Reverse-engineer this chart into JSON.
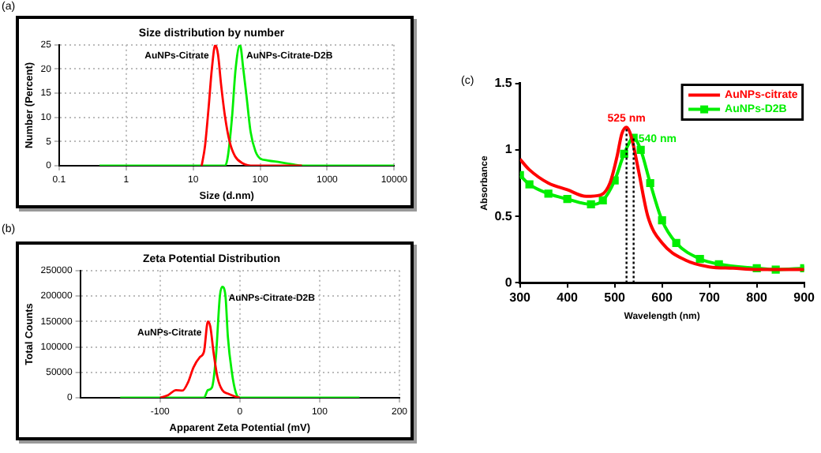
{
  "chart_data": [
    {
      "type": "line",
      "title": "Size distribution by number",
      "xlabel": "Size (d.nm)",
      "ylabel": "Number (Percent)",
      "annotations": [
        "(a)"
      ],
      "log": "x",
      "grid": true,
      "legend": false,
      "line_style": "solid",
      "marker": "none",
      "xlim": [
        0.1,
        10000
      ],
      "xticks": [
        0.1,
        1,
        10,
        100,
        1000,
        10000
      ],
      "ylim": [
        0,
        25
      ],
      "yticks": [
        0,
        5,
        10,
        15,
        20,
        25
      ],
      "series": [
        {
          "name": "AuNPs-Citrate",
          "color": "#ff0000",
          "x": [
            13.4,
            15,
            17,
            19,
            21.4,
            23.5,
            26,
            30,
            35,
            42,
            55,
            80,
            420
          ],
          "values": [
            0,
            4,
            12,
            20,
            25,
            23,
            17,
            10,
            5,
            2,
            0.5,
            0,
            0
          ]
        },
        {
          "name": "AuNPs-Citrate-D2B",
          "color": "#00ee00",
          "x": [
            0.4,
            30,
            33,
            38,
            43,
            50,
            56,
            63,
            72,
            85,
            100,
            130,
            200,
            300,
            420,
            10000
          ],
          "values": [
            0,
            0,
            2,
            10,
            20,
            25,
            20,
            14,
            7,
            3,
            1.5,
            1.1,
            0.7,
            0.3,
            0,
            0
          ]
        }
      ]
    },
    {
      "type": "line",
      "title": "Zeta Potential Distribution",
      "xlabel": "Apparent Zeta Potential (mV)",
      "ylabel": "Total Counts",
      "annotations": [
        "(b)"
      ],
      "grid": true,
      "legend": false,
      "line_style": "solid",
      "marker": "none",
      "xlim": [
        -200,
        200
      ],
      "xticks": [
        -100,
        0,
        100,
        200
      ],
      "ylim": [
        0,
        250000
      ],
      "yticks": [
        0,
        50000,
        100000,
        150000,
        200000,
        250000
      ],
      "series": [
        {
          "name": "AuNPs-Citrate",
          "color": "#ff0000",
          "x": [
            -100,
            -90,
            -80,
            -72,
            -65,
            -58,
            -50,
            -45,
            -40,
            -37,
            -33,
            -28,
            -22,
            -15,
            -5,
            0
          ],
          "values": [
            0,
            5000,
            15000,
            14000,
            30000,
            60000,
            80000,
            90000,
            150000,
            140000,
            90000,
            40000,
            15000,
            8000,
            2000,
            0
          ]
        },
        {
          "name": "AuNPs-Citrate-D2B",
          "color": "#00ee00",
          "x": [
            -150,
            -45,
            -40,
            -35,
            -30,
            -25,
            -22,
            -18,
            -15,
            -10,
            -5,
            0,
            150
          ],
          "values": [
            0,
            0,
            15000,
            20000,
            80000,
            200000,
            218000,
            200000,
            120000,
            50000,
            10000,
            0,
            0
          ]
        }
      ]
    },
    {
      "type": "line",
      "xlabel": "Wavelength (nm)",
      "ylabel": "Absorbance",
      "annotations": [
        "(c)"
      ],
      "grid": false,
      "legend": "top right",
      "line_style": "solid",
      "xlim": [
        300,
        900
      ],
      "xticks": [
        300,
        400,
        500,
        600,
        700,
        800,
        900
      ],
      "ylim": [
        0,
        1.5
      ],
      "yticks": [
        0,
        0.5,
        1,
        1.5
      ],
      "ref_lines": [
        {
          "axis": "x",
          "value": 525,
          "label": "525 nm",
          "line_style": "dotted"
        },
        {
          "axis": "x",
          "value": 540,
          "label": "540 nm",
          "line_style": "dotted"
        }
      ],
      "series": [
        {
          "name": "AuNPs-citrate",
          "color": "#ff0000",
          "marker": "none",
          "x": [
            300,
            320,
            360,
            400,
            440,
            470,
            490,
            505,
            515,
            525,
            535,
            550,
            570,
            600,
            650,
            700,
            750,
            800,
            850,
            900
          ],
          "values": [
            0.93,
            0.85,
            0.75,
            0.7,
            0.65,
            0.66,
            0.75,
            0.95,
            1.12,
            1.17,
            1.1,
            0.85,
            0.5,
            0.3,
            0.17,
            0.12,
            0.11,
            0.1,
            0.1,
            0.1
          ]
        },
        {
          "name": "AuNPs-D2B",
          "color": "#00ee00",
          "marker": "square",
          "x": [
            300,
            320,
            360,
            400,
            450,
            475,
            500,
            520,
            540,
            555,
            575,
            600,
            630,
            680,
            720,
            800,
            840,
            900
          ],
          "values": [
            0.81,
            0.74,
            0.67,
            0.63,
            0.59,
            0.62,
            0.77,
            0.97,
            1.09,
            1.0,
            0.75,
            0.47,
            0.3,
            0.18,
            0.14,
            0.11,
            0.1,
            0.11
          ]
        }
      ]
    }
  ]
}
